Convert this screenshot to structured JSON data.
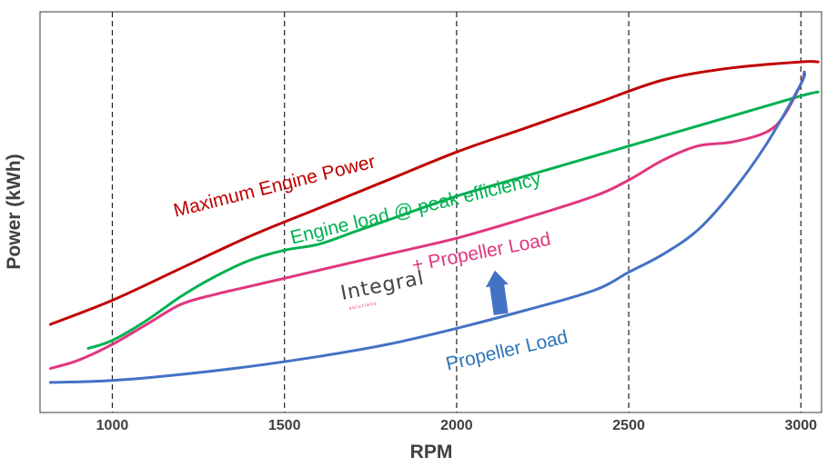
{
  "chart_data": {
    "type": "line",
    "title": "",
    "xlabel": "RPM",
    "ylabel": "Power (kWh)",
    "xlim": [
      790,
      3060
    ],
    "ylim": [
      0,
      100
    ],
    "x_ticks": [
      1000,
      1500,
      2000,
      2500,
      3000
    ],
    "grid": "vertical dashed lines at x ticks",
    "legend": "none (curves labelled inline)",
    "series": [
      {
        "name": "Maximum Engine Power",
        "color": "#c00000",
        "x": [
          820,
          1000,
          1200,
          1400,
          1600,
          1800,
          2000,
          2200,
          2400,
          2600,
          2800,
          3000,
          3050
        ],
        "y": [
          22,
          28,
          36,
          44,
          51,
          58,
          65,
          71,
          77,
          83,
          86,
          87.5,
          87.5
        ]
      },
      {
        "name": "Engine load @ peak efficiency",
        "color": "#00b050",
        "x": [
          930,
          1000,
          1100,
          1200,
          1300,
          1400,
          1500,
          1600,
          1700,
          1800,
          2000,
          2200,
          2400,
          2600,
          2800,
          3000,
          3050
        ],
        "y": [
          16,
          18,
          23,
          29,
          34,
          38,
          40.5,
          42,
          45,
          48,
          54,
          59,
          64,
          69,
          74,
          79,
          80
        ]
      },
      {
        "name": "Integral + Propeller Load",
        "color": "#e0367f",
        "x": [
          820,
          900,
          1000,
          1100,
          1200,
          1300,
          1400,
          1500,
          1600,
          1800,
          2000,
          2200,
          2400,
          2500,
          2600,
          2700,
          2800,
          2900,
          2950,
          3000,
          3010
        ],
        "y": [
          11,
          13,
          17,
          22,
          27,
          29.5,
          31.5,
          33.5,
          35.5,
          39.5,
          43.5,
          48.5,
          54,
          58,
          63,
          66.5,
          67.5,
          70,
          74,
          82,
          85
        ]
      },
      {
        "name": "Propeller Load",
        "color": "#4472c4",
        "x": [
          820,
          1000,
          1200,
          1400,
          1600,
          1800,
          2000,
          2200,
          2400,
          2500,
          2600,
          2700,
          2800,
          2900,
          3000,
          3010
        ],
        "y": [
          7.5,
          8,
          9.5,
          11.5,
          14,
          17,
          21,
          25.5,
          30.5,
          35,
          39.5,
          45.5,
          55,
          67,
          82,
          85
        ]
      }
    ],
    "annotations": [
      {
        "text": "Maximum Engine Power",
        "color": "#c00000",
        "x": 1475,
        "y": 55,
        "angle": -14
      },
      {
        "text": "Engine load @ peak efficiency",
        "color": "#00b050",
        "x": 1885,
        "y": 49.5,
        "angle": -13.5
      },
      {
        "text": "+ Propeller Load",
        "color": "#e0367f",
        "x": 2075,
        "y": 38.5,
        "angle": -11
      },
      {
        "text": "Propeller Load",
        "color": "#2e75b6",
        "x": 2150,
        "y": 14,
        "angle": -13
      }
    ],
    "arrow": {
      "x": 2120,
      "y_from": 24.5,
      "y_to": 35.5,
      "color": "#4472c4"
    }
  },
  "logo": {
    "text": "Integral",
    "sub": "solutions"
  }
}
